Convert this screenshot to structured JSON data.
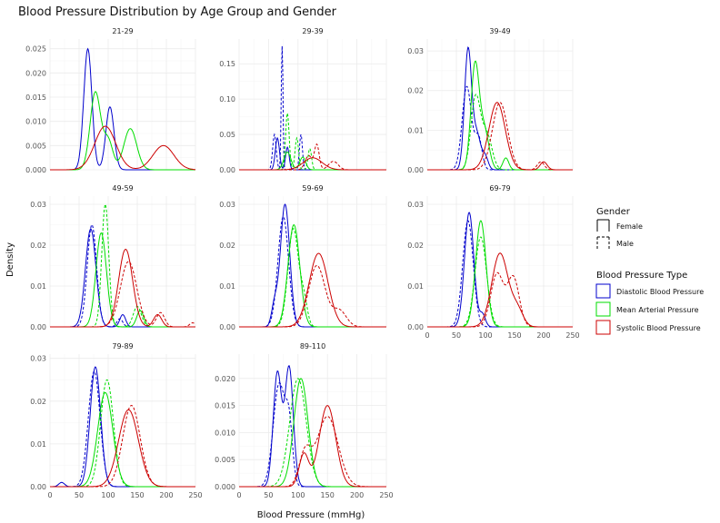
{
  "chart_data": {
    "type": "line",
    "subtype": "faceted density",
    "title": "Blood Pressure Distribution by Age Group and Gender",
    "xlabel": "Blood Pressure (mmHg)",
    "ylabel": "Density",
    "xlim": [
      0,
      250
    ],
    "x_ticks": [
      0,
      50,
      100,
      150,
      200,
      250
    ],
    "grid": true,
    "legend_position": "right",
    "legend": {
      "gender_title": "Gender",
      "gender_items": [
        {
          "label": "Female",
          "dash": "solid"
        },
        {
          "label": "Male",
          "dash": "dashed"
        }
      ],
      "type_title": "Blood Pressure Type",
      "type_items": [
        {
          "label": "Diastolic Blood Pressure",
          "color": "#0000cc"
        },
        {
          "label": "Mean Arterial Pressure",
          "color": "#00dd00"
        },
        {
          "label": "Systolic Blood Pressure",
          "color": "#cc0000"
        }
      ]
    },
    "facets": [
      {
        "label": "21-29",
        "ylim": [
          0,
          0.027
        ],
        "y_ticks": [
          0,
          0.005,
          0.01,
          0.015,
          0.02,
          0.025
        ],
        "y_tick_labels": [
          "0.000",
          "0.005",
          "0.010",
          "0.015",
          "0.020",
          "0.025"
        ],
        "series": [
          {
            "type": "Diastolic",
            "gender": "Female",
            "mix": [
              [
                0.025,
                65,
                7
              ],
              [
                0.013,
                103,
                7
              ]
            ]
          },
          {
            "type": "Mean Arterial",
            "gender": "Female",
            "mix": [
              [
                0.016,
                78,
                9
              ],
              [
                0.0085,
                138,
                11
              ],
              [
                0.006,
                100,
                8
              ]
            ]
          },
          {
            "type": "Systolic",
            "gender": "Female",
            "mix": [
              [
                0.009,
                95,
                18
              ],
              [
                0.005,
                195,
                18
              ]
            ]
          }
        ]
      },
      {
        "label": "29-39",
        "ylim": [
          0,
          0.185
        ],
        "y_ticks": [
          0,
          0.05,
          0.1,
          0.15
        ],
        "y_tick_labels": [
          "0.00",
          "0.05",
          "0.10",
          "0.15"
        ],
        "series": [
          {
            "type": "Diastolic",
            "gender": "Female",
            "mix": [
              [
                0.045,
                65,
                3.5
              ],
              [
                0.032,
                82,
                3
              ]
            ]
          },
          {
            "type": "Diastolic",
            "gender": "Male",
            "mix": [
              [
                0.05,
                60,
                3
              ],
              [
                0.175,
                73,
                1.5
              ],
              [
                0.05,
                105,
                2.5
              ]
            ]
          },
          {
            "type": "Mean Arterial",
            "gender": "Female",
            "mix": [
              [
                0.025,
                82,
                6
              ],
              [
                0.018,
                108,
                5
              ]
            ]
          },
          {
            "type": "Mean Arterial",
            "gender": "Male",
            "mix": [
              [
                0.08,
                82,
                3
              ],
              [
                0.045,
                98,
                3
              ],
              [
                0.03,
                120,
                3
              ]
            ]
          },
          {
            "type": "Systolic",
            "gender": "Female",
            "mix": [
              [
                0.017,
                125,
                16
              ]
            ]
          },
          {
            "type": "Systolic",
            "gender": "Male",
            "mix": [
              [
                0.02,
                118,
                6
              ],
              [
                0.035,
                132,
                4
              ],
              [
                0.012,
                160,
                8
              ]
            ]
          }
        ]
      },
      {
        "label": "39-49",
        "ylim": [
          0,
          0.033
        ],
        "y_ticks": [
          0,
          0.01,
          0.02,
          0.03
        ],
        "y_tick_labels": [
          "0.00",
          "0.01",
          "0.02",
          "0.03"
        ],
        "series": [
          {
            "type": "Diastolic",
            "gender": "Female",
            "mix": [
              [
                0.03,
                70,
                6
              ],
              [
                0.009,
                85,
                7
              ],
              [
                0.003,
                100,
                5
              ]
            ]
          },
          {
            "type": "Diastolic",
            "gender": "Male",
            "mix": [
              [
                0.021,
                68,
                8
              ],
              [
                0.008,
                88,
                6
              ]
            ]
          },
          {
            "type": "Mean Arterial",
            "gender": "Female",
            "mix": [
              [
                0.026,
                82,
                7
              ],
              [
                0.01,
                98,
                8
              ],
              [
                0.003,
                135,
                5
              ]
            ]
          },
          {
            "type": "Mean Arterial",
            "gender": "Male",
            "mix": [
              [
                0.018,
                83,
                8
              ],
              [
                0.009,
                102,
                9
              ]
            ]
          },
          {
            "type": "Systolic",
            "gender": "Female",
            "mix": [
              [
                0.017,
                120,
                14
              ],
              [
                0.002,
                200,
                6
              ]
            ]
          },
          {
            "type": "Systolic",
            "gender": "Male",
            "mix": [
              [
                0.017,
                125,
                13
              ],
              [
                0.002,
                195,
                6
              ]
            ]
          }
        ]
      },
      {
        "label": "49-59",
        "ylim": [
          0,
          0.032
        ],
        "y_ticks": [
          0,
          0.01,
          0.02,
          0.03
        ],
        "y_tick_labels": [
          "0.00",
          "0.01",
          "0.02",
          "0.03"
        ],
        "series": [
          {
            "type": "Diastolic",
            "gender": "Female",
            "mix": [
              [
                0.024,
                70,
                9
              ],
              [
                0.003,
                125,
                5
              ]
            ]
          },
          {
            "type": "Diastolic",
            "gender": "Male",
            "mix": [
              [
                0.025,
                72,
                8
              ],
              [
                0.002,
                120,
                5
              ]
            ]
          },
          {
            "type": "Mean Arterial",
            "gender": "Female",
            "mix": [
              [
                0.023,
                88,
                9
              ],
              [
                0.004,
                155,
                6
              ]
            ]
          },
          {
            "type": "Mean Arterial",
            "gender": "Male",
            "mix": [
              [
                0.03,
                95,
                6
              ],
              [
                0.005,
                150,
                7
              ]
            ]
          },
          {
            "type": "Systolic",
            "gender": "Female",
            "mix": [
              [
                0.019,
                130,
                12
              ],
              [
                0.003,
                185,
                7
              ]
            ]
          },
          {
            "type": "Systolic",
            "gender": "Male",
            "mix": [
              [
                0.016,
                135,
                14
              ],
              [
                0.0035,
                190,
                7
              ],
              [
                0.001,
                245,
                5
              ]
            ]
          }
        ]
      },
      {
        "label": "59-69",
        "ylim": [
          0,
          0.032
        ],
        "y_ticks": [
          0,
          0.01,
          0.02,
          0.03
        ],
        "y_tick_labels": [
          "0.00",
          "0.01",
          "0.02",
          "0.03"
        ],
        "series": [
          {
            "type": "Diastolic",
            "gender": "Female",
            "mix": [
              [
                0.03,
                78,
                8
              ],
              [
                0.005,
                60,
                5
              ]
            ]
          },
          {
            "type": "Diastolic",
            "gender": "Male",
            "mix": [
              [
                0.027,
                75,
                9
              ]
            ]
          },
          {
            "type": "Mean Arterial",
            "gender": "Female",
            "mix": [
              [
                0.025,
                93,
                10
              ]
            ]
          },
          {
            "type": "Mean Arterial",
            "gender": "Male",
            "mix": [
              [
                0.024,
                92,
                9
              ],
              [
                0.006,
                110,
                6
              ]
            ]
          },
          {
            "type": "Systolic",
            "gender": "Female",
            "mix": [
              [
                0.018,
                135,
                16
              ]
            ]
          },
          {
            "type": "Systolic",
            "gender": "Male",
            "mix": [
              [
                0.015,
                132,
                14
              ],
              [
                0.004,
                170,
                12
              ]
            ]
          }
        ]
      },
      {
        "label": "69-79",
        "ylim": [
          0,
          0.032
        ],
        "y_ticks": [
          0,
          0.01,
          0.02,
          0.03
        ],
        "y_tick_labels": [
          "0.00",
          "0.01",
          "0.02",
          "0.03"
        ],
        "series": [
          {
            "type": "Diastolic",
            "gender": "Female",
            "mix": [
              [
                0.028,
                72,
                8
              ],
              [
                0.003,
                95,
                5
              ]
            ]
          },
          {
            "type": "Diastolic",
            "gender": "Male",
            "mix": [
              [
                0.026,
                70,
                9
              ]
            ]
          },
          {
            "type": "Mean Arterial",
            "gender": "Female",
            "mix": [
              [
                0.026,
                92,
                9
              ]
            ]
          },
          {
            "type": "Mean Arterial",
            "gender": "Male",
            "mix": [
              [
                0.022,
                92,
                10
              ]
            ]
          },
          {
            "type": "Systolic",
            "gender": "Female",
            "mix": [
              [
                0.018,
                125,
                14
              ],
              [
                0.004,
                155,
                10
              ]
            ]
          },
          {
            "type": "Systolic",
            "gender": "Male",
            "mix": [
              [
                0.013,
                120,
                11
              ],
              [
                0.012,
                148,
                10
              ]
            ]
          }
        ]
      },
      {
        "label": "79-89",
        "ylim": [
          0,
          0.031
        ],
        "y_ticks": [
          0,
          0.01,
          0.02,
          0.03
        ],
        "y_tick_labels": [
          "0.00",
          "0.01",
          "0.02",
          "0.03"
        ],
        "series": [
          {
            "type": "Diastolic",
            "gender": "Female",
            "mix": [
              [
                0.028,
                78,
                9
              ],
              [
                0.001,
                20,
                5
              ]
            ]
          },
          {
            "type": "Diastolic",
            "gender": "Male",
            "mix": [
              [
                0.027,
                76,
                10
              ]
            ]
          },
          {
            "type": "Mean Arterial",
            "gender": "Female",
            "mix": [
              [
                0.022,
                95,
                13
              ]
            ]
          },
          {
            "type": "Mean Arterial",
            "gender": "Male",
            "mix": [
              [
                0.025,
                98,
                11
              ]
            ]
          },
          {
            "type": "Systolic",
            "gender": "Female",
            "mix": [
              [
                0.018,
                135,
                17
              ]
            ]
          },
          {
            "type": "Systolic",
            "gender": "Male",
            "mix": [
              [
                0.019,
                140,
                15
              ]
            ]
          }
        ]
      },
      {
        "label": "89-110",
        "ylim": [
          0,
          0.0245
        ],
        "y_ticks": [
          0,
          0.005,
          0.01,
          0.015,
          0.02
        ],
        "y_tick_labels": [
          "0.000",
          "0.005",
          "0.010",
          "0.015",
          "0.020"
        ],
        "series": [
          {
            "type": "Diastolic",
            "gender": "Female",
            "mix": [
              [
                0.021,
                65,
                7
              ],
              [
                0.022,
                85,
                7
              ]
            ]
          },
          {
            "type": "Diastolic",
            "gender": "Male",
            "mix": [
              [
                0.019,
                68,
                10
              ],
              [
                0.01,
                85,
                6
              ]
            ]
          },
          {
            "type": "Mean Arterial",
            "gender": "Female",
            "mix": [
              [
                0.02,
                105,
                12
              ]
            ]
          },
          {
            "type": "Mean Arterial",
            "gender": "Male",
            "mix": [
              [
                0.02,
                100,
                14
              ]
            ]
          },
          {
            "type": "Systolic",
            "gender": "Female",
            "mix": [
              [
                0.006,
                110,
                8
              ],
              [
                0.015,
                150,
                14
              ]
            ]
          },
          {
            "type": "Systolic",
            "gender": "Male",
            "mix": [
              [
                0.006,
                112,
                10
              ],
              [
                0.013,
                150,
                18
              ]
            ]
          }
        ]
      }
    ]
  }
}
